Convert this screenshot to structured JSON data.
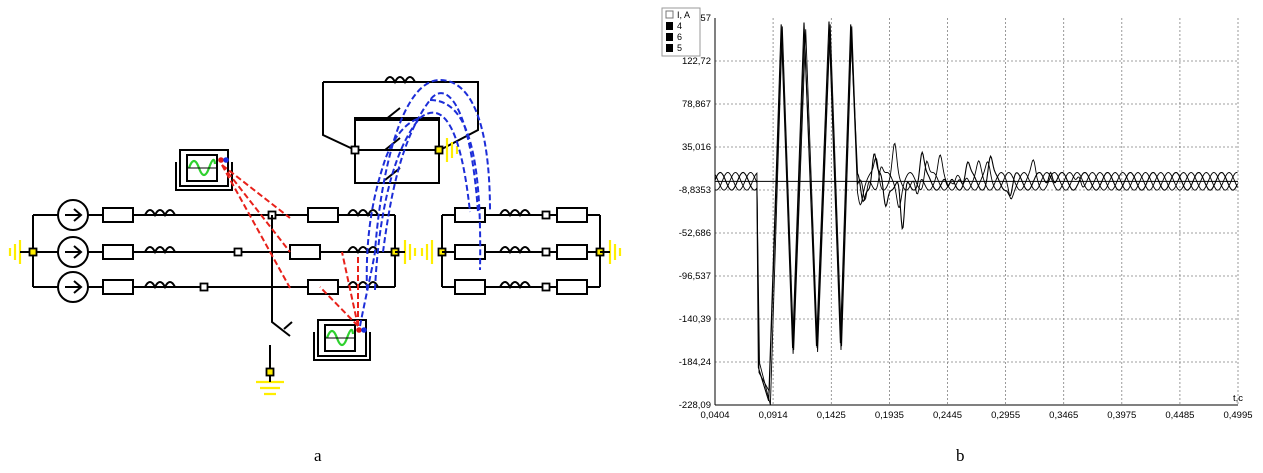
{
  "captions": {
    "left": "a",
    "right": "b"
  },
  "colors": {
    "wire": "#000000",
    "ground": "#ffee00",
    "red_link": "#e8211a",
    "blue_link": "#1c2dd8",
    "scope_wave": "#2fd12f",
    "scope_dot_red": "#e21a1a",
    "scope_dot_blue": "#1a2fe2",
    "grid": "#808080"
  },
  "icons": [
    "current-source-icon",
    "resistor-icon",
    "inductor-icon",
    "switch-icon",
    "ground-icon",
    "oscilloscope-icon",
    "node-icon"
  ],
  "chart_data": {
    "type": "line",
    "legend": {
      "title": "I, A",
      "entries": [
        "4",
        "6",
        "5"
      ],
      "placement": "top-left"
    },
    "xlabel": "t,c",
    "ylabel": "",
    "x_ticks": [
      "0,0404",
      "0,0914",
      "0,1425",
      "0,1935",
      "0,2445",
      "0,2955",
      "0,3465",
      "0,3975",
      "0,4485",
      "0,4995"
    ],
    "y_ticks": [
      "166,57",
      "122,72",
      "78,867",
      "35,016",
      "-8,8353",
      "-52,686",
      "-96,537",
      "-140,39",
      "-184,24",
      "-228,09"
    ],
    "xlim": [
      0.0404,
      0.4995
    ],
    "ylim": [
      -228.09,
      166.57
    ],
    "grid": true,
    "fault_interval": [
      0.0775,
      0.1635
    ],
    "steady_amplitude": 9,
    "series": [
      {
        "name": "4",
        "pre_fault_phase_deg": 0,
        "fault_peaks_x": [
          0.0785,
          0.0875,
          0.0985,
          0.1085,
          0.1185,
          0.1295,
          0.1405,
          0.1505,
          0.1595
        ],
        "fault_peaks_y": [
          -190,
          -224,
          160,
          -170,
          162,
          -168,
          163,
          -165,
          160
        ],
        "post_fault_transients_x": [
          0.17,
          0.18,
          0.19,
          0.205,
          0.222,
          0.245,
          0.262,
          0.282,
          0.3,
          0.335
        ],
        "post_fault_transients_y": [
          -20,
          28,
          -25,
          -58,
          24,
          -14,
          14,
          20,
          -14,
          18
        ]
      },
      {
        "name": "6",
        "pre_fault_phase_deg": 120,
        "fault_peaks_x": [
          0.079,
          0.088,
          0.099,
          0.109,
          0.119,
          0.13,
          0.141,
          0.151,
          0.16
        ],
        "fault_peaks_y": [
          -195,
          -214,
          150,
          -176,
          150,
          -170,
          155,
          -172,
          152
        ],
        "post_fault_transients_x": [
          0.168,
          0.182,
          0.198,
          0.218,
          0.238,
          0.258,
          0.28,
          0.32
        ],
        "post_fault_transients_y": [
          -15,
          20,
          30,
          -22,
          18,
          -12,
          12,
          14
        ]
      },
      {
        "name": "5",
        "pre_fault_phase_deg": 240,
        "fault_peaks_x": [
          0.0795,
          0.089,
          0.0995,
          0.1095,
          0.12,
          0.1305,
          0.1415,
          0.1515,
          0.1605
        ],
        "fault_peaks_y": [
          -185,
          -228,
          158,
          -172,
          155,
          -174,
          160,
          -168,
          158
        ],
        "post_fault_transients_x": [
          0.172,
          0.186,
          0.202,
          0.226,
          0.25,
          0.272,
          0.3,
          0.36
        ],
        "post_fault_transients_y": [
          -28,
          16,
          -18,
          22,
          -10,
          12,
          -10,
          12
        ]
      }
    ]
  }
}
